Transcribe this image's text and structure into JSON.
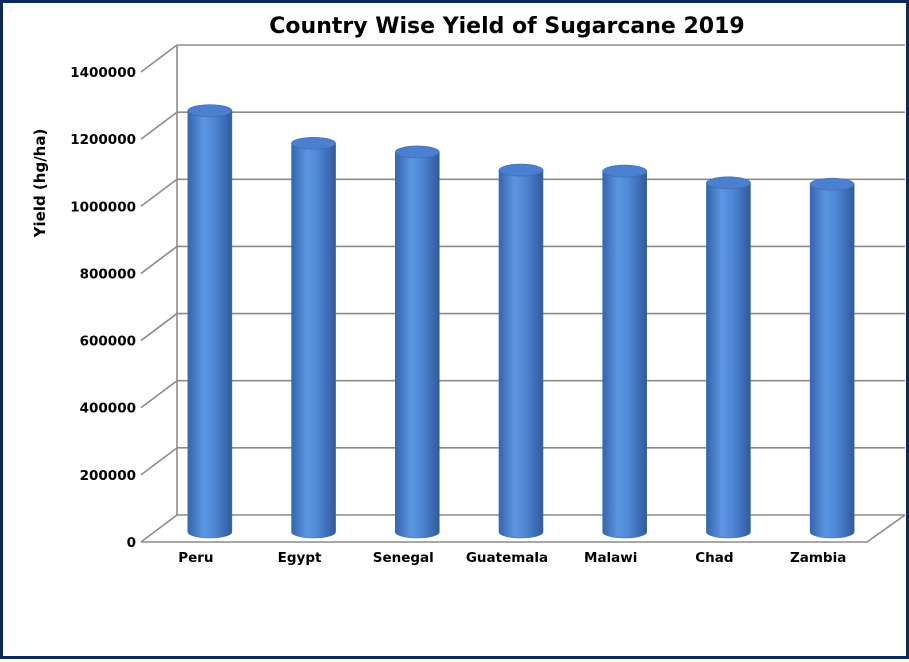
{
  "chart_data": {
    "type": "bar",
    "title": "Country Wise Yield of Sugarcane 2019",
    "xlabel": "",
    "ylabel": "Yield (hg/ha)",
    "categories": [
      "Peru",
      "Egypt",
      "Senegal",
      "Guatemala",
      "Malawi",
      "Chad",
      "Zambia"
    ],
    "values": [
      1255000,
      1158000,
      1132000,
      1078000,
      1075000,
      1040000,
      1036000
    ],
    "ylim": [
      0,
      1400000
    ],
    "yticks": [
      "0",
      "200000",
      "400000",
      "600000",
      "800000",
      "1000000",
      "1200000",
      "1400000"
    ],
    "grid": true,
    "legend": "none",
    "style": "3d-cylinder",
    "colors": {
      "bar": "#4f86d6",
      "grid": "#8c8c8c",
      "frame": "#0b2a5c"
    }
  }
}
